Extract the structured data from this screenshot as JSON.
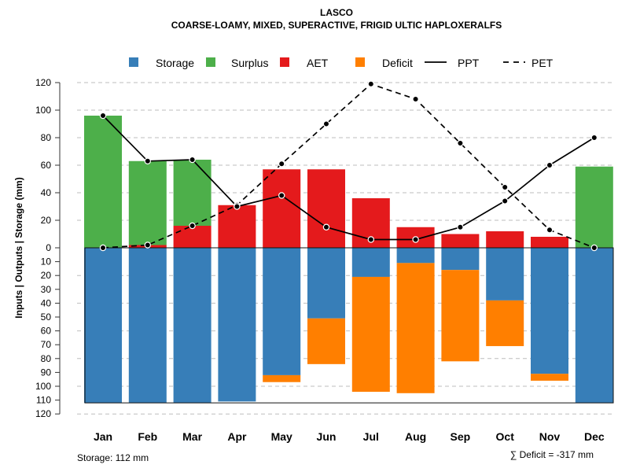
{
  "chart_data": {
    "type": "bar",
    "title": "LASCO",
    "subtitle": "COARSE-LOAMY, MIXED, SUPERACTIVE, FRIGID ULTIC HAPLOXERALFS",
    "ylabel": "Inputs | Outputs | Storage    (mm)",
    "categories": [
      "Jan",
      "Feb",
      "Mar",
      "Apr",
      "May",
      "Jun",
      "Jul",
      "Aug",
      "Sep",
      "Oct",
      "Nov",
      "Dec"
    ],
    "ylim_top": [
      0,
      120
    ],
    "ylim_bottom": [
      0,
      120
    ],
    "top_ticks": [
      "0",
      "20",
      "40",
      "60",
      "80",
      "100",
      "120"
    ],
    "bottom_ticks": [
      "10",
      "20",
      "30",
      "40",
      "50",
      "60",
      "70",
      "80",
      "90",
      "100",
      "110",
      "120"
    ],
    "capacity": 112,
    "series": {
      "aet": [
        0,
        2,
        16,
        31,
        57,
        57,
        36,
        15,
        10,
        12,
        8,
        0
      ],
      "surplus": [
        96,
        61,
        48,
        0,
        0,
        0,
        0,
        0,
        0,
        0,
        0,
        59
      ],
      "storage": [
        112,
        112,
        112,
        111,
        92,
        51,
        21,
        11,
        16,
        38,
        91,
        112
      ],
      "deficit": [
        0,
        0,
        0,
        0,
        5,
        33,
        83,
        94,
        66,
        33,
        5,
        0
      ],
      "ppt": [
        96,
        63,
        64,
        30,
        38,
        15,
        6,
        6,
        15,
        34,
        60,
        80
      ],
      "pet": [
        0,
        2,
        16,
        31,
        61,
        90,
        119,
        108,
        76,
        44,
        13,
        0
      ]
    },
    "legend": [
      {
        "label": "Storage",
        "kind": "box",
        "color": "#377EB8"
      },
      {
        "label": "Surplus",
        "kind": "box",
        "color": "#4DAF4A"
      },
      {
        "label": "AET",
        "kind": "box",
        "color": "#E41A1C"
      },
      {
        "label": "Deficit",
        "kind": "box",
        "color": "#FF7F00"
      },
      {
        "label": "PPT",
        "kind": "solid"
      },
      {
        "label": "PET",
        "kind": "dashed"
      }
    ],
    "colors": {
      "storage": "#377EB8",
      "surplus": "#4DAF4A",
      "aet": "#E41A1C",
      "deficit": "#FF7F00",
      "grid": "#BEBEBE",
      "axis": "#333333"
    },
    "footer_left": "Storage: 112 mm",
    "footer_right": "∑ Deficit = -317 mm"
  }
}
